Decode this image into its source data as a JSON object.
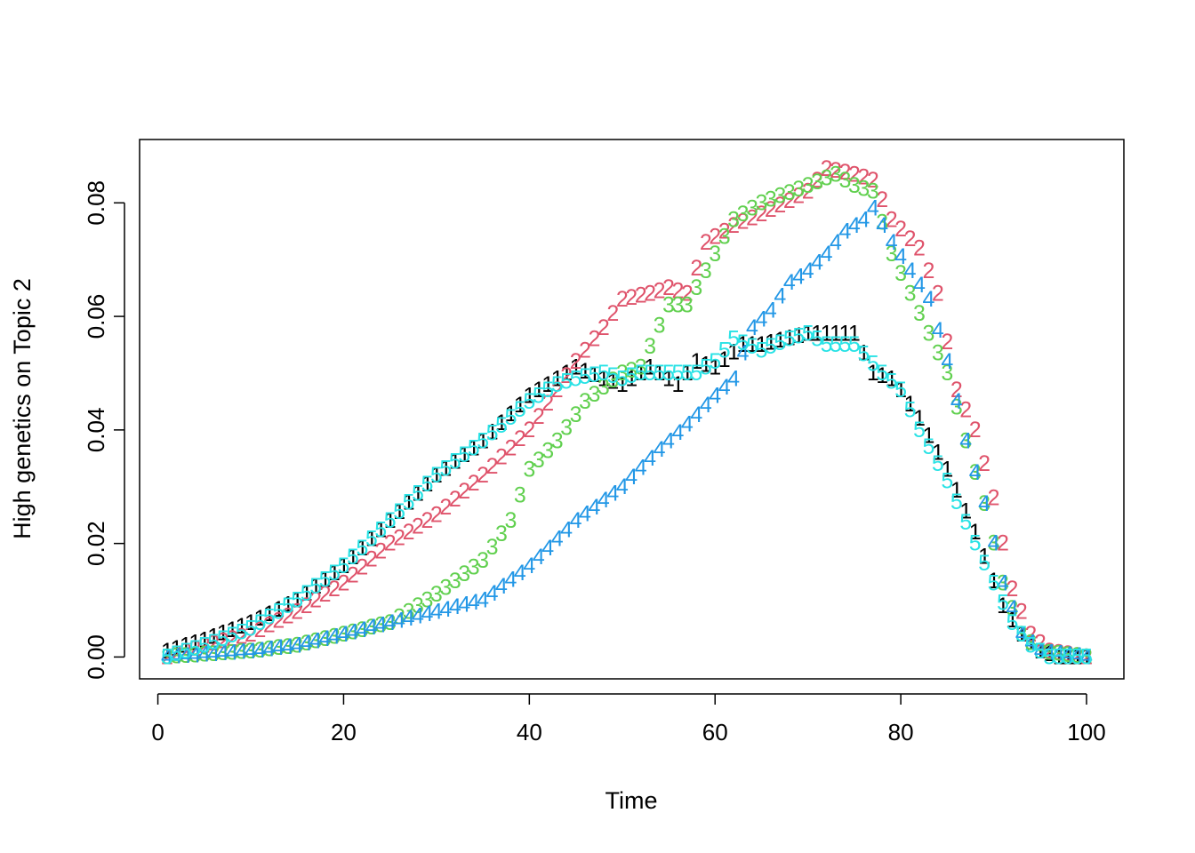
{
  "chart_data": {
    "type": "scatter",
    "marker_style": "series number as plotting character",
    "title": "",
    "xlabel": "Time",
    "ylabel": "High genetics on Topic 2",
    "xlim": [
      1,
      100
    ],
    "ylim": [
      -0.0015,
      0.0885
    ],
    "xticks": [
      0,
      20,
      40,
      60,
      80,
      100
    ],
    "xtick_labels": [
      "0",
      "20",
      "40",
      "60",
      "80",
      "100"
    ],
    "yticks": [
      0,
      0.02,
      0.04,
      0.06,
      0.08
    ],
    "ytick_labels": [
      "0.00",
      "0.02",
      "0.04",
      "0.06",
      "0.08"
    ],
    "grid": false,
    "legend": "none",
    "x_range": [
      1,
      100
    ],
    "series": [
      {
        "name": "1",
        "symbol": "1",
        "color": "#000000",
        "keypoints": [
          [
            1,
            0.001
          ],
          [
            5,
            0.003
          ],
          [
            10,
            0.006
          ],
          [
            15,
            0.01
          ],
          [
            20,
            0.016
          ],
          [
            25,
            0.024
          ],
          [
            30,
            0.032
          ],
          [
            35,
            0.038
          ],
          [
            40,
            0.046
          ],
          [
            45,
            0.051
          ],
          [
            48,
            0.049
          ],
          [
            50,
            0.048
          ],
          [
            53,
            0.051
          ],
          [
            56,
            0.048
          ],
          [
            58,
            0.052
          ],
          [
            60,
            0.051
          ],
          [
            63,
            0.055
          ],
          [
            65,
            0.055
          ],
          [
            70,
            0.057
          ],
          [
            75,
            0.057
          ],
          [
            77,
            0.05
          ],
          [
            79,
            0.049
          ],
          [
            80,
            0.047
          ],
          [
            82,
            0.042
          ],
          [
            85,
            0.033
          ],
          [
            88,
            0.022
          ],
          [
            91,
            0.009
          ],
          [
            93,
            0.004
          ],
          [
            95,
            0.001
          ],
          [
            97,
            0.0
          ],
          [
            100,
            0.0
          ]
        ]
      },
      {
        "name": "2",
        "symbol": "2",
        "color": "#DF536B",
        "keypoints": [
          [
            1,
            0.0
          ],
          [
            5,
            0.002
          ],
          [
            10,
            0.004
          ],
          [
            15,
            0.008
          ],
          [
            20,
            0.013
          ],
          [
            25,
            0.02
          ],
          [
            30,
            0.025
          ],
          [
            35,
            0.032
          ],
          [
            40,
            0.04
          ],
          [
            43,
            0.047
          ],
          [
            45,
            0.052
          ],
          [
            48,
            0.058
          ],
          [
            50,
            0.063
          ],
          [
            53,
            0.064
          ],
          [
            55,
            0.065
          ],
          [
            57,
            0.064
          ],
          [
            59,
            0.073
          ],
          [
            62,
            0.076
          ],
          [
            65,
            0.078
          ],
          [
            70,
            0.082
          ],
          [
            72,
            0.086
          ],
          [
            75,
            0.085
          ],
          [
            77,
            0.084
          ],
          [
            79,
            0.077
          ],
          [
            82,
            0.072
          ],
          [
            84,
            0.064
          ],
          [
            86,
            0.047
          ],
          [
            88,
            0.04
          ],
          [
            90,
            0.028
          ],
          [
            92,
            0.012
          ],
          [
            94,
            0.004
          ],
          [
            96,
            0.001
          ],
          [
            100,
            0.0
          ]
        ]
      },
      {
        "name": "3",
        "symbol": "3",
        "color": "#61D04F",
        "keypoints": [
          [
            1,
            0.0
          ],
          [
            10,
            0.001
          ],
          [
            15,
            0.002
          ],
          [
            20,
            0.004
          ],
          [
            25,
            0.006
          ],
          [
            30,
            0.011
          ],
          [
            35,
            0.017
          ],
          [
            38,
            0.024
          ],
          [
            40,
            0.033
          ],
          [
            43,
            0.038
          ],
          [
            46,
            0.045
          ],
          [
            50,
            0.05
          ],
          [
            52,
            0.051
          ],
          [
            55,
            0.062
          ],
          [
            57,
            0.062
          ],
          [
            59,
            0.068
          ],
          [
            62,
            0.077
          ],
          [
            65,
            0.08
          ],
          [
            70,
            0.083
          ],
          [
            73,
            0.085
          ],
          [
            75,
            0.083
          ],
          [
            77,
            0.082
          ],
          [
            79,
            0.071
          ],
          [
            81,
            0.064
          ],
          [
            83,
            0.057
          ],
          [
            85,
            0.05
          ],
          [
            87,
            0.038
          ],
          [
            89,
            0.027
          ],
          [
            91,
            0.013
          ],
          [
            93,
            0.004
          ],
          [
            95,
            0.001
          ],
          [
            100,
            0.0
          ]
        ]
      },
      {
        "name": "4",
        "symbol": "4",
        "color": "#2297E6",
        "keypoints": [
          [
            1,
            0.0
          ],
          [
            10,
            0.001
          ],
          [
            15,
            0.002
          ],
          [
            20,
            0.004
          ],
          [
            25,
            0.006
          ],
          [
            30,
            0.008
          ],
          [
            35,
            0.01
          ],
          [
            40,
            0.016
          ],
          [
            45,
            0.024
          ],
          [
            50,
            0.03
          ],
          [
            53,
            0.035
          ],
          [
            55,
            0.038
          ],
          [
            57,
            0.041
          ],
          [
            60,
            0.046
          ],
          [
            62,
            0.049
          ],
          [
            64,
            0.058
          ],
          [
            66,
            0.061
          ],
          [
            68,
            0.066
          ],
          [
            70,
            0.068
          ],
          [
            72,
            0.071
          ],
          [
            74,
            0.075
          ],
          [
            76,
            0.077
          ],
          [
            77,
            0.079
          ],
          [
            79,
            0.073
          ],
          [
            81,
            0.068
          ],
          [
            83,
            0.063
          ],
          [
            85,
            0.052
          ],
          [
            87,
            0.038
          ],
          [
            89,
            0.027
          ],
          [
            91,
            0.013
          ],
          [
            93,
            0.004
          ],
          [
            95,
            0.001
          ],
          [
            100,
            0.0
          ]
        ]
      },
      {
        "name": "5",
        "symbol": "5",
        "color": "#28E2E5",
        "keypoints": [
          [
            1,
            0.0
          ],
          [
            5,
            0.002
          ],
          [
            10,
            0.005
          ],
          [
            15,
            0.01
          ],
          [
            20,
            0.016
          ],
          [
            25,
            0.024
          ],
          [
            30,
            0.032
          ],
          [
            35,
            0.038
          ],
          [
            40,
            0.045
          ],
          [
            43,
            0.048
          ],
          [
            45,
            0.049
          ],
          [
            48,
            0.05
          ],
          [
            50,
            0.049
          ],
          [
            52,
            0.05
          ],
          [
            55,
            0.05
          ],
          [
            58,
            0.05
          ],
          [
            60,
            0.052
          ],
          [
            62,
            0.056
          ],
          [
            65,
            0.054
          ],
          [
            68,
            0.056
          ],
          [
            70,
            0.057
          ],
          [
            72,
            0.055
          ],
          [
            75,
            0.055
          ],
          [
            78,
            0.05
          ],
          [
            80,
            0.047
          ],
          [
            82,
            0.04
          ],
          [
            85,
            0.031
          ],
          [
            88,
            0.02
          ],
          [
            90,
            0.013
          ],
          [
            92,
            0.006
          ],
          [
            94,
            0.002
          ],
          [
            96,
            0.0
          ],
          [
            100,
            0.0
          ]
        ]
      }
    ]
  }
}
